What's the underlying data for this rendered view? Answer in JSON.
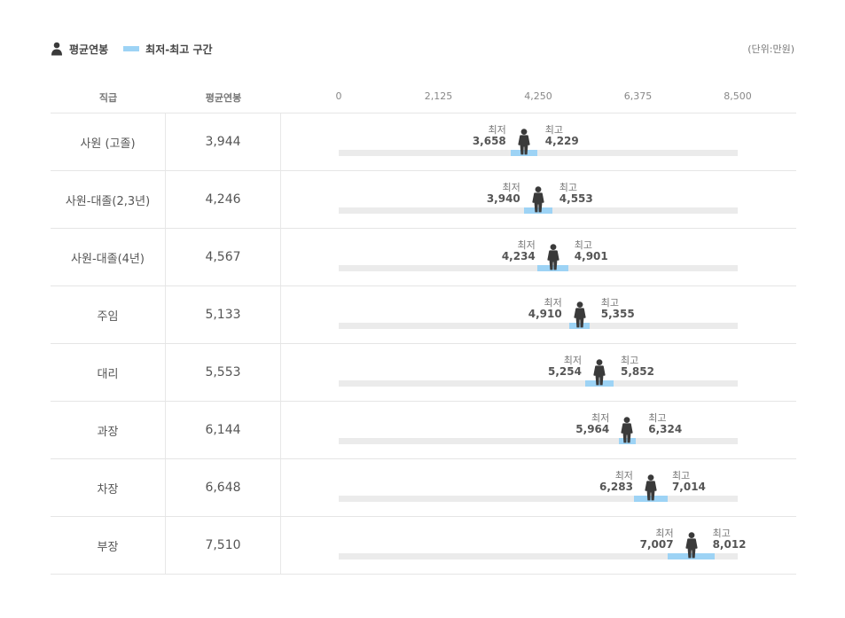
{
  "legend": {
    "average_label": "평균연봉",
    "range_label": "최저-최고 구간"
  },
  "unit": "(단위:만원)",
  "headers": {
    "grade": "직급",
    "avg": "평균연봉"
  },
  "labels": {
    "min": "최저",
    "max": "최고"
  },
  "colors": {
    "range": "#9dd3f5",
    "track": "#ebebeb",
    "person": "#3a3a3a"
  },
  "icons": {
    "average": "person-icon"
  },
  "chart_data": {
    "type": "range-bar",
    "xlim": [
      0,
      8500
    ],
    "ticks": [
      "0",
      "2,125",
      "4,250",
      "6,375",
      "8,500"
    ],
    "tick_values": [
      0,
      2125,
      4250,
      6375,
      8500
    ],
    "rows": [
      {
        "grade": "사원 (고졸)",
        "avg": 3944,
        "avg_text": "3,944",
        "min": 3658,
        "min_text": "3,658",
        "max": 4229,
        "max_text": "4,229"
      },
      {
        "grade": "사원-대졸(2,3년)",
        "avg": 4246,
        "avg_text": "4,246",
        "min": 3940,
        "min_text": "3,940",
        "max": 4553,
        "max_text": "4,553"
      },
      {
        "grade": "사원-대졸(4년)",
        "avg": 4567,
        "avg_text": "4,567",
        "min": 4234,
        "min_text": "4,234",
        "max": 4901,
        "max_text": "4,901"
      },
      {
        "grade": "주임",
        "avg": 5133,
        "avg_text": "5,133",
        "min": 4910,
        "min_text": "4,910",
        "max": 5355,
        "max_text": "5,355"
      },
      {
        "grade": "대리",
        "avg": 5553,
        "avg_text": "5,553",
        "min": 5254,
        "min_text": "5,254",
        "max": 5852,
        "max_text": "5,852"
      },
      {
        "grade": "과장",
        "avg": 6144,
        "avg_text": "6,144",
        "min": 5964,
        "min_text": "5,964",
        "max": 6324,
        "max_text": "6,324"
      },
      {
        "grade": "차장",
        "avg": 6648,
        "avg_text": "6,648",
        "min": 6283,
        "min_text": "6,283",
        "max": 7014,
        "max_text": "7,014"
      },
      {
        "grade": "부장",
        "avg": 7510,
        "avg_text": "7,510",
        "min": 7007,
        "min_text": "7,007",
        "max": 8012,
        "max_text": "8,012"
      }
    ]
  }
}
